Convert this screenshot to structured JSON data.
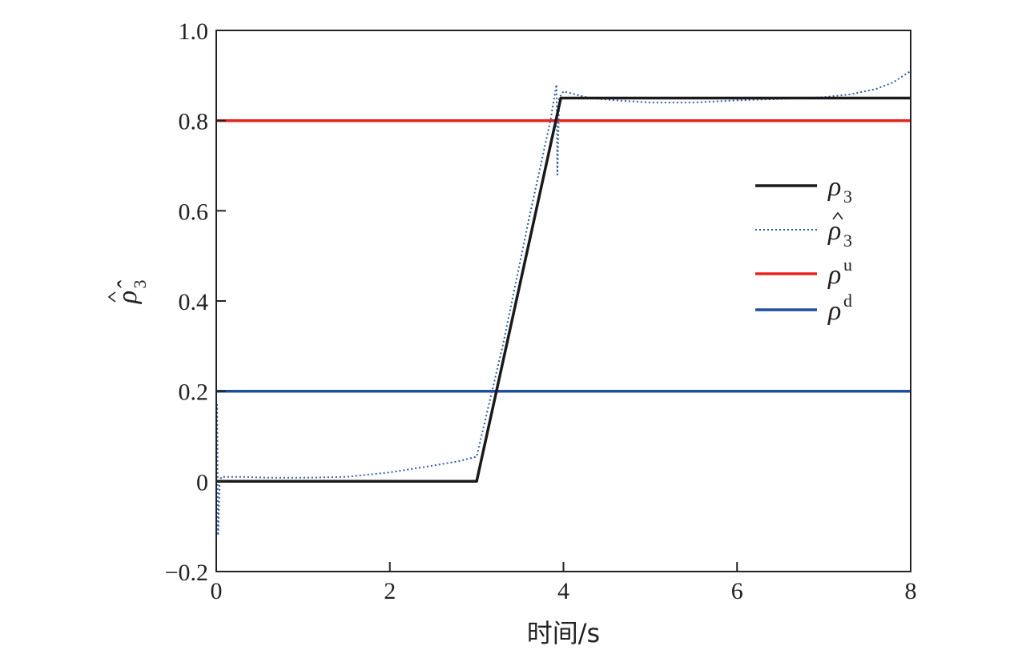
{
  "chart_data": {
    "type": "line",
    "xlabel": "时间/s",
    "ylabel": {
      "symbol": "ρ̂",
      "subscript": "3"
    },
    "xlim": [
      0,
      8
    ],
    "ylim": [
      -0.2,
      1.0
    ],
    "xticks": [
      0,
      2,
      4,
      6,
      8
    ],
    "xtick_labels": [
      "0",
      "2",
      "4",
      "6",
      "8"
    ],
    "yticks": [
      -0.2,
      0,
      0.2,
      0.4,
      0.6,
      0.8,
      1.0
    ],
    "ytick_labels": [
      "−0.2",
      "0",
      "0.2",
      "0.4",
      "0.6",
      "0.8",
      "1.0"
    ],
    "grid": false,
    "legend_position": "right",
    "series": [
      {
        "name": "ρ3",
        "label": {
          "symbol": "ρ",
          "hat": false,
          "script": "3",
          "script_pos": "sub"
        },
        "color": "#1a1a1a",
        "style": "solid",
        "x": [
          0,
          3.0,
          3.97,
          8.0
        ],
        "y": [
          0,
          0,
          0.85,
          0.85
        ]
      },
      {
        "name": "ρ̂3",
        "label": {
          "symbol": "ρ",
          "hat": true,
          "script": "3",
          "script_pos": "sub"
        },
        "color": "#2e5aa8",
        "style": "dotted",
        "x": [
          0,
          0.01,
          0.02,
          0.04,
          0.06,
          0.1,
          0.3,
          0.6,
          1.0,
          1.5,
          2.0,
          2.5,
          2.8,
          3.0,
          3.3,
          3.6,
          3.85,
          3.92,
          3.93,
          3.95,
          4.0,
          4.1,
          4.3,
          4.6,
          5.0,
          5.5,
          6.0,
          6.5,
          7.0,
          7.3,
          7.6,
          7.8,
          8.0
        ],
        "y": [
          0.0,
          0.17,
          -0.12,
          0.0,
          0.01,
          0.01,
          0.01,
          0.008,
          0.008,
          0.01,
          0.02,
          0.035,
          0.045,
          0.055,
          0.3,
          0.58,
          0.8,
          0.88,
          0.68,
          0.85,
          0.865,
          0.86,
          0.85,
          0.845,
          0.84,
          0.84,
          0.845,
          0.848,
          0.852,
          0.858,
          0.87,
          0.885,
          0.91
        ]
      },
      {
        "name": "ρu",
        "label": {
          "symbol": "ρ",
          "hat": false,
          "script": "u",
          "script_pos": "sup"
        },
        "color": "#e8231d",
        "style": "solid",
        "x": [
          0,
          8
        ],
        "y": [
          0.8,
          0.8
        ]
      },
      {
        "name": "ρd",
        "label": {
          "symbol": "ρ",
          "hat": false,
          "script": "d",
          "script_pos": "sup"
        },
        "color": "#1f4e9c",
        "style": "solid",
        "x": [
          0,
          8
        ],
        "y": [
          0.2,
          0.2
        ]
      }
    ]
  }
}
